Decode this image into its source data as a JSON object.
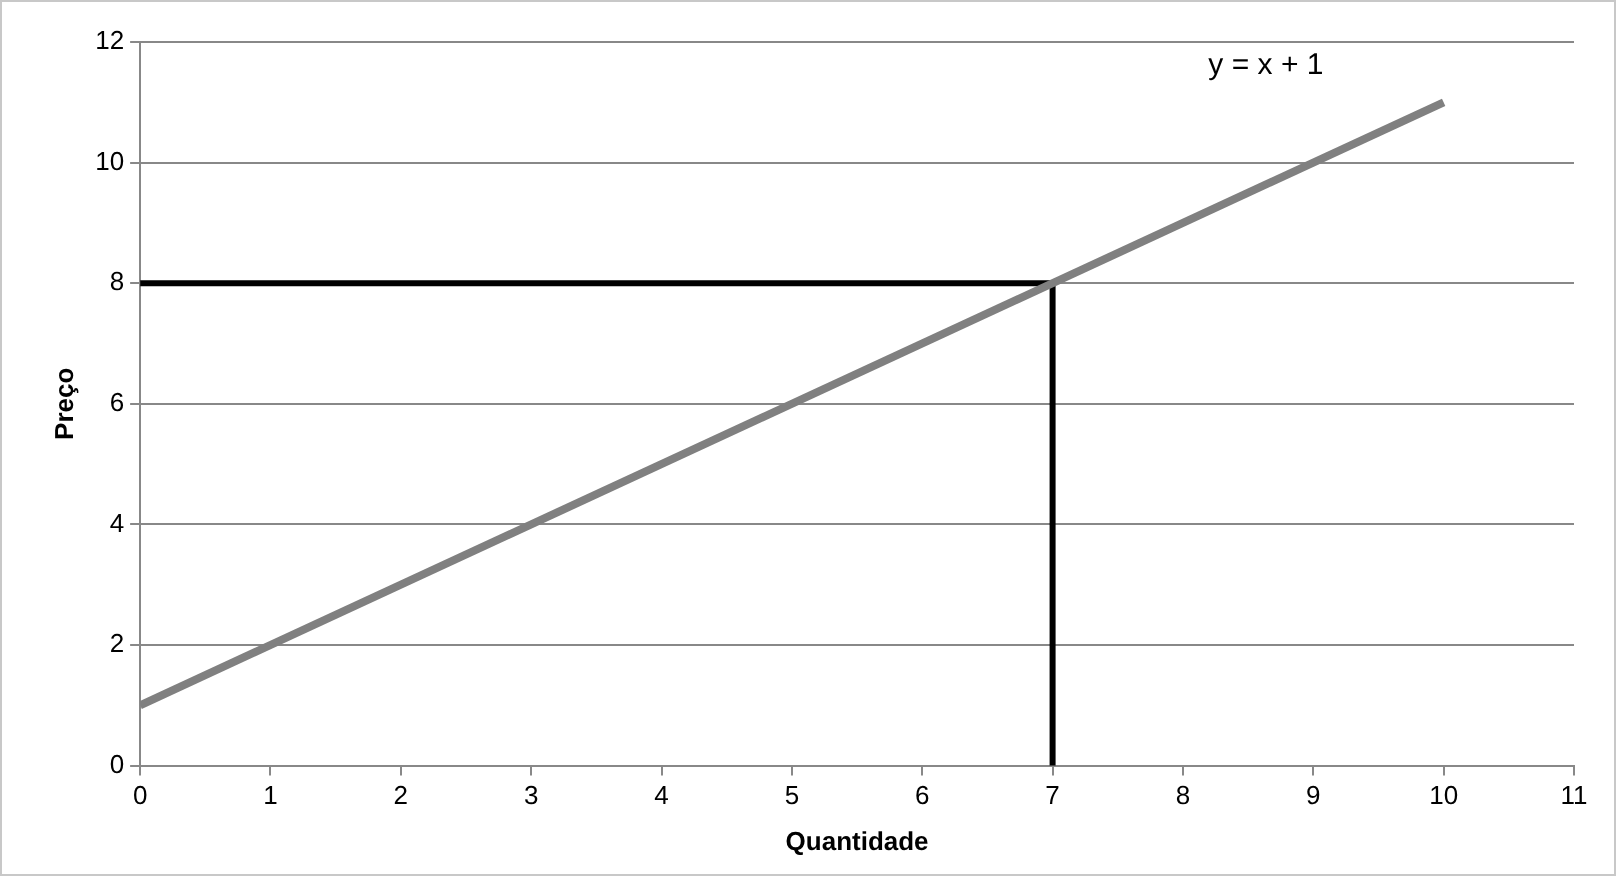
{
  "chart_data": {
    "type": "line",
    "xlabel": "Quantidade",
    "ylabel": "Preço",
    "xlim": [
      0,
      11
    ],
    "xticks": [
      0,
      1,
      2,
      3,
      4,
      5,
      6,
      7,
      8,
      9,
      10,
      11
    ],
    "ylim": [
      0,
      12
    ],
    "yticks": [
      0,
      2,
      4,
      6,
      8,
      10,
      12
    ],
    "grid": "y",
    "legend": false,
    "marker": "none",
    "line_style": "solid",
    "series": [
      {
        "type": "line",
        "color": "#808080",
        "x": [
          0,
          10
        ],
        "values": [
          1,
          11
        ]
      },
      {
        "type": "line",
        "color": "#000000",
        "x": [
          0,
          7,
          7
        ],
        "values": [
          8,
          8,
          0
        ]
      }
    ],
    "annotations": [
      "y = x + 1"
    ]
  }
}
